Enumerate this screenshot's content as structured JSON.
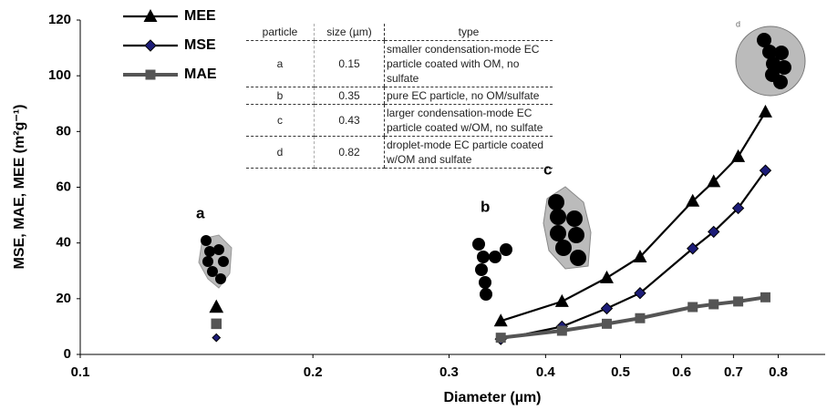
{
  "chart_data": {
    "type": "line",
    "x_label": "Diameter (µm)",
    "y_label": "MSE, MAE, MEE (m²g⁻¹)",
    "log_x": true,
    "xlim": [
      0.1,
      0.92
    ],
    "xticks": [
      0.1,
      0.2,
      0.3,
      0.4,
      0.5,
      0.6,
      0.7,
      0.8
    ],
    "ylim": [
      0,
      120
    ],
    "yticks": [
      0,
      20,
      40,
      60,
      80,
      100,
      120
    ],
    "grid": false,
    "x": [
      0.35,
      0.42,
      0.48,
      0.53,
      0.62,
      0.66,
      0.71,
      0.77
    ],
    "isolated_x": 0.15,
    "series": [
      {
        "name": "MEE",
        "color": "#000000",
        "marker": "triangle",
        "values": [
          12,
          19,
          27.5,
          35,
          55,
          62,
          71,
          87
        ],
        "isolated_value": 17
      },
      {
        "name": "MSE",
        "color": "#000000",
        "marker": "diamond",
        "marker_color": "#1c1c78",
        "values": [
          5.5,
          10,
          16.5,
          22,
          38,
          44,
          52.5,
          66
        ],
        "isolated_value": 6
      },
      {
        "name": "MAE",
        "color": "#555555",
        "marker": "square",
        "values": [
          6,
          8.5,
          11,
          13,
          17,
          18,
          19,
          20.5
        ],
        "isolated_value": 11
      }
    ],
    "annotations": [
      "a",
      "b",
      "c",
      "d"
    ],
    "table": {
      "header": [
        "particle",
        "size (µm)",
        "type"
      ],
      "rows": [
        [
          "a",
          "0.15",
          "smaller condensation-mode EC particle coated with OM, no sulfate"
        ],
        [
          "b",
          "0.35",
          "pure EC particle, no OM/sulfate"
        ],
        [
          "c",
          "0.43",
          "larger condensation-mode EC particle coated w/OM, no sulfate"
        ],
        [
          "d",
          "0.82",
          "droplet-mode EC particle coated w/OM and sulfate"
        ]
      ]
    }
  }
}
